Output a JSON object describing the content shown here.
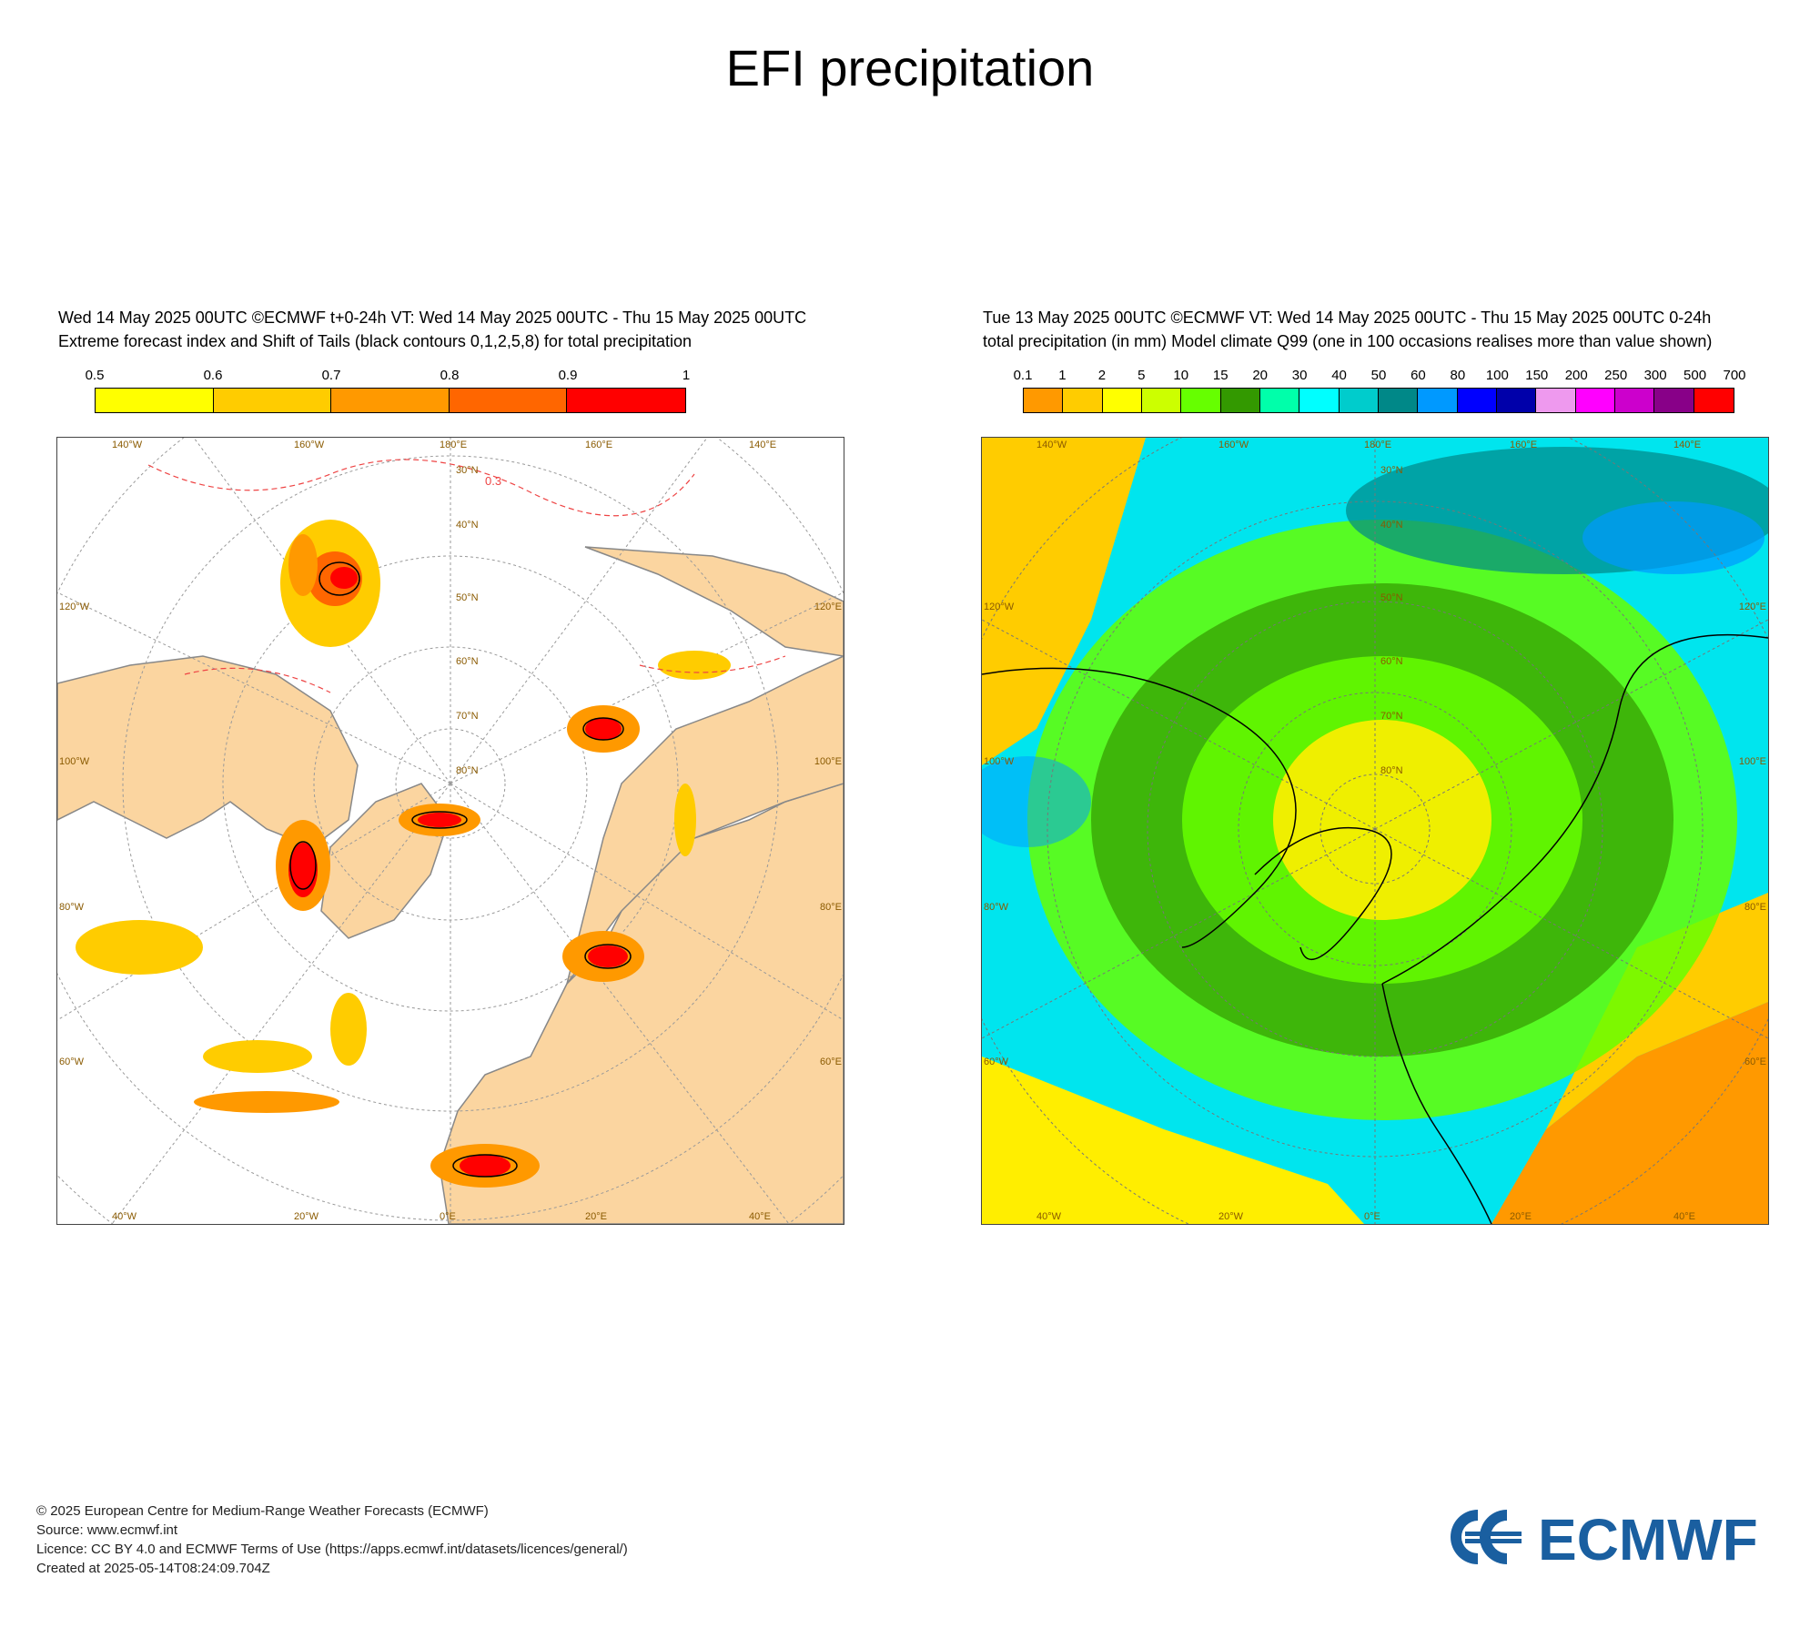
{
  "title": "EFI precipitation",
  "left_panel": {
    "line1": "Wed 14 May 2025 00UTC ©ECMWF t+0-24h  VT: Wed 14 May 2025 00UTC - Thu 15 May 2025 00UTC",
    "line2": "Extreme forecast index and Shift of Tails (black contours 0,1,2,5,8) for total precipitation",
    "legend_ticks": [
      "0.5",
      "0.6",
      "0.7",
      "0.8",
      "0.9",
      "1"
    ],
    "legend_colors": [
      "#ffff00",
      "#ffcc00",
      "#ff9900",
      "#ff6600",
      "#ff0000"
    ],
    "contour_label": "0.3"
  },
  "right_panel": {
    "line1": "Tue 13 May 2025 00UTC ©ECMWF VT: Wed 14 May 2025 00UTC - Thu 15 May 2025 00UTC   0-24h",
    "line2": "total precipitation (in mm)  Model climate Q99 (one in 100 occasions realises more than value shown)",
    "legend_ticks": [
      "0.1",
      "1",
      "2",
      "5",
      "10",
      "15",
      "20",
      "30",
      "40",
      "50",
      "60",
      "80",
      "100",
      "150",
      "200",
      "250",
      "300",
      "500",
      "700"
    ],
    "legend_colors": [
      "#ff9900",
      "#ffcc00",
      "#ffff00",
      "#ccff00",
      "#66ff00",
      "#339900",
      "#00ffaa",
      "#00ffff",
      "#00cccc",
      "#008888",
      "#0099ff",
      "#0000ff",
      "#0000aa",
      "#ee99ee",
      "#ff00ff",
      "#cc00cc",
      "#880088",
      "#ff0000"
    ]
  },
  "map_labels": {
    "top": [
      "140°W",
      "160°W",
      "180°E",
      "160°E",
      "140°E"
    ],
    "bottom": [
      "40°W",
      "20°W",
      "0°E",
      "20°E",
      "40°E"
    ],
    "left": [
      "120°W",
      "100°W",
      "80°W",
      "60°W"
    ],
    "right": [
      "120°E",
      "100°E",
      "80°E",
      "60°E"
    ],
    "lat": [
      "30°N",
      "40°N",
      "50°N",
      "60°N",
      "70°N",
      "80°N"
    ]
  },
  "footer": {
    "line1": "© 2025 European Centre for Medium-Range Weather Forecasts (ECMWF)",
    "line2": "Source: www.ecmwf.int",
    "line3": "Licence: CC BY 4.0 and ECMWF Terms of Use (https://apps.ecmwf.int/datasets/licences/general/)",
    "line4": "Created at 2025-05-14T08:24:09.704Z"
  },
  "logo_text": "ECMWF",
  "colors": {
    "land": "#fbd5a0",
    "ocean": "#ffffff",
    "grid": "#999999",
    "coast": "#888888",
    "logo": "#1a5fa0"
  }
}
